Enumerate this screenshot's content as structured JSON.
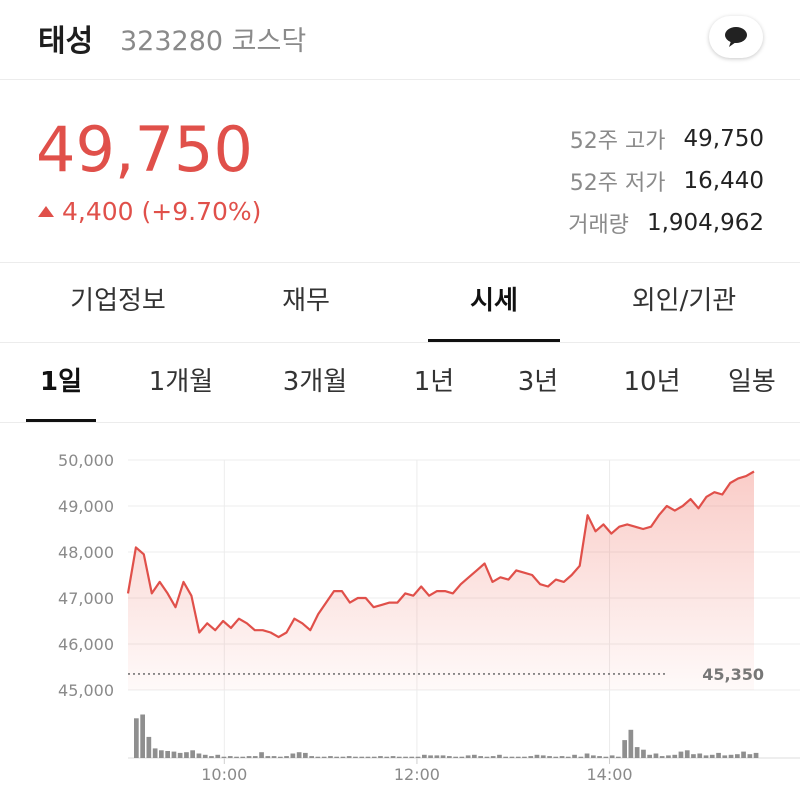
{
  "header": {
    "name": "태성",
    "code_market": "323280 코스닥",
    "chat_icon": "chat-bubble-icon"
  },
  "quote": {
    "price": "49,750",
    "change": "4,400 (+9.70%)",
    "up_color": "#e0504a",
    "stats": [
      {
        "label": "52주 고가",
        "value": "49,750"
      },
      {
        "label": "52주 저가",
        "value": "16,440"
      },
      {
        "label": "거래량",
        "value": "1,904,962"
      }
    ]
  },
  "tabs": [
    {
      "label": "기업정보",
      "active": false
    },
    {
      "label": "재무",
      "active": false
    },
    {
      "label": "시세",
      "active": true
    },
    {
      "label": "외인/기관",
      "active": false
    }
  ],
  "periods": [
    {
      "label": "1일",
      "active": true
    },
    {
      "label": "1개월",
      "active": false
    },
    {
      "label": "3개월",
      "active": false
    },
    {
      "label": "1년",
      "active": false
    },
    {
      "label": "3년",
      "active": false
    },
    {
      "label": "10년",
      "active": false
    },
    {
      "label": "일봉",
      "active": false
    }
  ],
  "chart_data": {
    "type": "line",
    "y_ticks": [
      "50,000",
      "49,000",
      "48,000",
      "47,000",
      "46,000",
      "45,000"
    ],
    "x_ticks": [
      "10:00",
      "12:00",
      "14:00"
    ],
    "ylim": [
      45000,
      50000
    ],
    "reference_label": "45,350",
    "reference_value": 45350,
    "line_color": "#e0504a",
    "volume_color": "#8f8f8f",
    "price": [
      47100,
      48100,
      47950,
      47100,
      47350,
      47100,
      46800,
      47350,
      47050,
      46250,
      46450,
      46300,
      46500,
      46350,
      46550,
      46450,
      46300,
      46300,
      46250,
      46150,
      46250,
      46550,
      46450,
      46300,
      46650,
      46900,
      47150,
      47150,
      46900,
      47000,
      47000,
      46800,
      46850,
      46900,
      46900,
      47100,
      47050,
      47250,
      47050,
      47150,
      47150,
      47100,
      47300,
      47450,
      47600,
      47750,
      47350,
      47450,
      47400,
      47600,
      47550,
      47500,
      47300,
      47250,
      47400,
      47350,
      47500,
      47700,
      48800,
      48450,
      48600,
      48400,
      48550,
      48600,
      48550,
      48500,
      48550,
      48800,
      49000,
      48900,
      49000,
      49150,
      48950,
      49200,
      49300,
      49250,
      49500,
      49600,
      49650,
      49750
    ],
    "volume": [
      0.62,
      0.68,
      0.33,
      0.15,
      0.12,
      0.11,
      0.1,
      0.08,
      0.09,
      0.12,
      0.07,
      0.05,
      0.03,
      0.05,
      0.02,
      0.03,
      0.02,
      0.02,
      0.03,
      0.03,
      0.09,
      0.03,
      0.03,
      0.02,
      0.03,
      0.07,
      0.09,
      0.08,
      0.03,
      0.02,
      0.02,
      0.03,
      0.02,
      0.02,
      0.03,
      0.02,
      0.02,
      0.02,
      0.02,
      0.03,
      0.02,
      0.03,
      0.02,
      0.02,
      0.02,
      0.02,
      0.05,
      0.04,
      0.04,
      0.04,
      0.03,
      0.02,
      0.02,
      0.04,
      0.05,
      0.03,
      0.02,
      0.03,
      0.05,
      0.02,
      0.02,
      0.02,
      0.02,
      0.03,
      0.05,
      0.04,
      0.03,
      0.02,
      0.03,
      0.02,
      0.05,
      0.02,
      0.07,
      0.04,
      0.03,
      0.02,
      0.04,
      0.02,
      0.28,
      0.44,
      0.17,
      0.13,
      0.05,
      0.07,
      0.03,
      0.04,
      0.05,
      0.1,
      0.12,
      0.06,
      0.07,
      0.04,
      0.05,
      0.08,
      0.04,
      0.05,
      0.06,
      0.1,
      0.06,
      0.08
    ]
  }
}
